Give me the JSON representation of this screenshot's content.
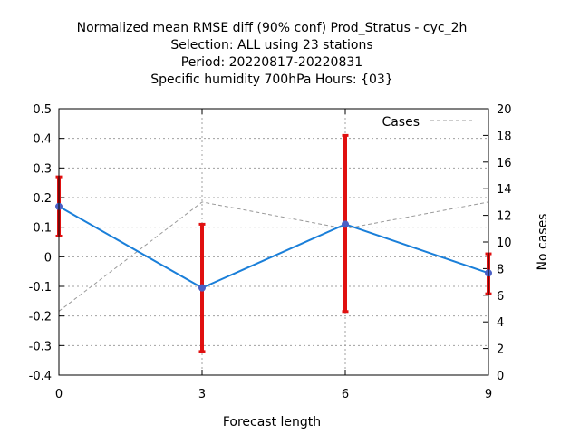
{
  "chart_data": {
    "type": "line",
    "title_lines": [
      "Normalized mean RMSE diff (90% conf) Prod_Stratus - cyc_2h",
      "Selection: ALL using    23 stations",
      "Period: 20220817-20220831",
      "Specific humidity 700hPa   Hours: {03}"
    ],
    "xlabel": "Forecast length",
    "ylabel": "",
    "y2label": "No cases",
    "x": [
      0,
      3,
      6,
      9
    ],
    "xlim": [
      0,
      9
    ],
    "xticks": [
      0,
      3,
      6,
      9
    ],
    "ylim": [
      -0.4,
      0.5
    ],
    "yticks": [
      -0.4,
      -0.3,
      -0.2,
      -0.1,
      0,
      0.1,
      0.2,
      0.3,
      0.4,
      0.5
    ],
    "ytick_labels": [
      "-0.4",
      "-0.3",
      "-0.2",
      "-0.1",
      "0",
      "0.1",
      "0.2",
      "0.3",
      "0.4",
      "0.5"
    ],
    "y2lim": [
      0,
      20
    ],
    "y2ticks": [
      0,
      2,
      4,
      6,
      8,
      10,
      12,
      14,
      16,
      18,
      20
    ],
    "grid": true,
    "legend_position": "top-right",
    "series": [
      {
        "name": "",
        "axis": "left",
        "color": "#1a7fd9",
        "marker_color": "#4a5fc4",
        "values": [
          0.17,
          -0.105,
          0.11,
          -0.055
        ],
        "error_low": [
          0.07,
          -0.32,
          -0.185,
          -0.125
        ],
        "error_high": [
          0.27,
          0.11,
          0.41,
          0.01
        ],
        "error_color": "#e01010"
      },
      {
        "name": "Cases",
        "axis": "right",
        "color": "#999999",
        "dashed": true,
        "values": [
          4.8,
          13,
          11,
          13
        ]
      }
    ]
  }
}
